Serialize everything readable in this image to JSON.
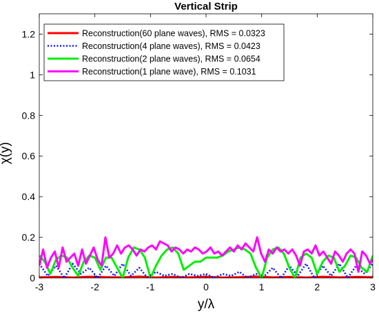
{
  "chart_data": {
    "type": "line",
    "title": "Vertical Strip",
    "xlabel": "y/λ",
    "ylabel": "χ(y)",
    "xlim": [
      -3,
      3
    ],
    "ylim": [
      0,
      1.3
    ],
    "xticks": [
      -3,
      -2,
      -1,
      0,
      1,
      2,
      3
    ],
    "xtick_labels": [
      "-3",
      "-2",
      "-1",
      "0",
      "1",
      "2",
      "3"
    ],
    "yticks": [
      0,
      0.2,
      0.4,
      0.6,
      0.8,
      1,
      1.2
    ],
    "ytick_labels": [
      "0",
      "0.2",
      "0.4",
      "0.6",
      "0.8",
      "1",
      "1.2"
    ],
    "grid": false,
    "legend_position": "top-left",
    "series": [
      {
        "name": "Reconstruction(60 plane waves), RMS = 0.0323",
        "color": "#ff0000",
        "dash": "solid",
        "x": [
          -3.0,
          -2.7,
          -2.4,
          -2.1,
          -1.8,
          -1.5,
          -1.2,
          -0.9,
          -0.6,
          -0.3,
          0.0,
          0.3,
          0.6,
          0.9,
          1.2,
          1.5,
          1.8,
          2.1,
          2.4,
          2.7,
          3.0
        ],
        "y": [
          0.003,
          0.005,
          0.002,
          0.006,
          0.004,
          0.003,
          0.007,
          0.002,
          0.005,
          0.003,
          0.006,
          0.002,
          0.004,
          0.007,
          0.003,
          0.005,
          0.002,
          0.006,
          0.003,
          0.005,
          0.004
        ]
      },
      {
        "name": "Reconstruction(4 plane waves), RMS = 0.0423",
        "color": "#1414ff",
        "dash": "dotted",
        "x": [
          -3.0,
          -2.85,
          -2.7,
          -2.55,
          -2.4,
          -2.25,
          -2.1,
          -1.95,
          -1.8,
          -1.65,
          -1.5,
          -1.35,
          -1.2,
          -1.05,
          -0.9,
          -0.75,
          -0.6,
          -0.45,
          -0.3,
          -0.15,
          0.0,
          0.15,
          0.3,
          0.45,
          0.6,
          0.75,
          0.9,
          1.05,
          1.2,
          1.35,
          1.5,
          1.65,
          1.8,
          1.95,
          2.1,
          2.25,
          2.4,
          2.55,
          2.7,
          2.85,
          3.0
        ],
        "y": [
          0.07,
          0.01,
          0.06,
          0.0,
          0.07,
          0.02,
          0.05,
          0.0,
          0.06,
          0.01,
          0.07,
          0.01,
          0.05,
          0.0,
          0.03,
          0.01,
          0.02,
          0.0,
          0.02,
          0.01,
          0.02,
          0.0,
          0.02,
          0.01,
          0.03,
          0.0,
          0.02,
          0.01,
          0.05,
          0.0,
          0.06,
          0.01,
          0.07,
          0.0,
          0.06,
          0.01,
          0.07,
          0.0,
          0.06,
          0.02,
          0.07
        ]
      },
      {
        "name": "Reconstruction(2 plane waves), RMS = 0.0654",
        "color": "#00ee00",
        "dash": "solid",
        "x": [
          -3.0,
          -2.9,
          -2.8,
          -2.7,
          -2.6,
          -2.5,
          -2.4,
          -2.3,
          -2.2,
          -2.1,
          -2.0,
          -1.9,
          -1.8,
          -1.7,
          -1.6,
          -1.5,
          -1.4,
          -1.3,
          -1.2,
          -1.1,
          -1.0,
          -0.9,
          -0.8,
          -0.7,
          -0.6,
          -0.5,
          -0.4,
          -0.3,
          -0.2,
          -0.1,
          0.0,
          0.1,
          0.2,
          0.3,
          0.4,
          0.5,
          0.6,
          0.7,
          0.8,
          0.9,
          1.0,
          1.1,
          1.2,
          1.3,
          1.4,
          1.5,
          1.6,
          1.7,
          1.8,
          1.9,
          2.0,
          2.1,
          2.2,
          2.3,
          2.4,
          2.5,
          2.6,
          2.7,
          2.8,
          2.9,
          3.0
        ],
        "y": [
          0.11,
          0.08,
          0.02,
          0.09,
          0.11,
          0.1,
          0.05,
          0.01,
          0.08,
          0.11,
          0.1,
          0.04,
          0.1,
          0.1,
          0.05,
          0.0,
          0.1,
          0.15,
          0.14,
          0.1,
          0.0,
          0.06,
          0.11,
          0.14,
          0.15,
          0.12,
          0.04,
          0.06,
          0.08,
          0.08,
          0.1,
          0.1,
          0.1,
          0.11,
          0.13,
          0.14,
          0.15,
          0.14,
          0.12,
          0.05,
          0.0,
          0.1,
          0.14,
          0.15,
          0.12,
          0.05,
          0.0,
          0.1,
          0.12,
          0.1,
          0.02,
          0.08,
          0.11,
          0.1,
          0.03,
          0.06,
          0.11,
          0.1,
          0.05,
          0.03,
          0.11
        ]
      },
      {
        "name": "Reconstruction(1 plane wave), RMS = 0.1031",
        "color": "#ff00ff",
        "dash": "solid",
        "x": [
          -3.0,
          -2.93,
          -2.86,
          -2.79,
          -2.72,
          -2.65,
          -2.58,
          -2.51,
          -2.44,
          -2.37,
          -2.3,
          -2.23,
          -2.16,
          -2.09,
          -2.02,
          -1.95,
          -1.88,
          -1.81,
          -1.74,
          -1.67,
          -1.6,
          -1.53,
          -1.46,
          -1.39,
          -1.32,
          -1.25,
          -1.18,
          -1.11,
          -1.04,
          -0.97,
          -0.9,
          -0.83,
          -0.76,
          -0.69,
          -0.62,
          -0.55,
          -0.48,
          -0.41,
          -0.34,
          -0.27,
          -0.2,
          -0.13,
          -0.06,
          0.01,
          0.08,
          0.15,
          0.22,
          0.29,
          0.36,
          0.43,
          0.5,
          0.57,
          0.64,
          0.71,
          0.78,
          0.85,
          0.92,
          0.99,
          1.06,
          1.13,
          1.2,
          1.27,
          1.34,
          1.41,
          1.48,
          1.55,
          1.62,
          1.69,
          1.76,
          1.83,
          1.9,
          1.97,
          2.04,
          2.11,
          2.18,
          2.25,
          2.32,
          2.39,
          2.46,
          2.53,
          2.6,
          2.67,
          2.74,
          2.81,
          2.88,
          2.95,
          3.0
        ],
        "y": [
          0.06,
          0.14,
          0.05,
          0.1,
          0.13,
          0.05,
          0.15,
          0.08,
          0.1,
          0.12,
          0.06,
          0.14,
          0.07,
          0.11,
          0.15,
          0.09,
          0.06,
          0.2,
          0.1,
          0.12,
          0.16,
          0.12,
          0.15,
          0.16,
          0.14,
          0.11,
          0.14,
          0.13,
          0.15,
          0.16,
          0.14,
          0.18,
          0.17,
          0.16,
          0.13,
          0.15,
          0.14,
          0.12,
          0.14,
          0.13,
          0.15,
          0.14,
          0.12,
          0.13,
          0.15,
          0.12,
          0.13,
          0.11,
          0.13,
          0.15,
          0.13,
          0.16,
          0.14,
          0.17,
          0.15,
          0.13,
          0.2,
          0.12,
          0.08,
          0.14,
          0.12,
          0.15,
          0.13,
          0.14,
          0.12,
          0.14,
          0.11,
          0.06,
          0.13,
          0.14,
          0.12,
          0.16,
          0.11,
          0.13,
          0.1,
          0.07,
          0.13,
          0.11,
          0.08,
          0.12,
          0.14,
          0.12,
          0.03,
          0.13,
          0.11,
          0.07,
          0.09
        ]
      }
    ]
  }
}
